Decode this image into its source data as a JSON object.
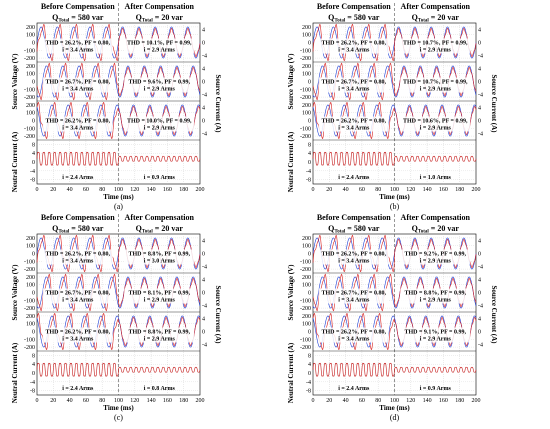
{
  "colors": {
    "voltage": "#1f3fd6",
    "current": "#d81e1e",
    "neutral": "#c51c1c",
    "grid": "#bbbbbb",
    "divider": "#555555"
  },
  "shared": {
    "header_before": "Before Compensation",
    "header_after": "After Compensation",
    "q_before_label": "Q",
    "q_before_sub": "Total",
    "q_before_value": " = 580 var",
    "q_after_label": "Q",
    "q_after_sub": "Total",
    "q_after_value": " = 20 var",
    "ylabel_left_top": "Source Voltage (V)",
    "ylabel_left_bottom": "Neutral Current (A)",
    "ylabel_right": "Source Current (A)",
    "xlabel": "Time (ms)"
  },
  "chart_data": [
    {
      "type": "line",
      "caption": "(a)",
      "x_ticks": [
        0,
        20,
        40,
        60,
        80,
        100,
        120,
        140,
        160,
        180,
        200
      ],
      "xlim": [
        0,
        200
      ],
      "voltage_ticks": [
        200,
        100,
        0,
        -100,
        -200
      ],
      "current_ticks": [
        4,
        0,
        -4
      ],
      "neutral_ticks": [
        8,
        4,
        0,
        -4,
        -8
      ],
      "before_rows": [
        {
          "thd": "26.2%",
          "pf": "0.80",
          "i": "3.4 Arms"
        },
        {
          "thd": "26.7%",
          "pf": "0.80",
          "i": "3.4 Arms"
        },
        {
          "thd": "26.2%",
          "pf": "0.80",
          "i": "3.4 Arms"
        }
      ],
      "after_rows": [
        {
          "thd": "10.1%",
          "pf": "0.99",
          "i": "2.9 Arms"
        },
        {
          "thd": "9.6%",
          "pf": "0.99",
          "i": "2.9 Arms"
        },
        {
          "thd": "10.0%",
          "pf": "0.99",
          "i": "2.9 Arms"
        }
      ],
      "neutral_before": "2.4 A",
      "neutral_after": "0.9 A"
    },
    {
      "type": "line",
      "caption": "(b)",
      "x_ticks": [
        0,
        20,
        40,
        60,
        80,
        100,
        120,
        140,
        160,
        180,
        200
      ],
      "xlim": [
        0,
        200
      ],
      "voltage_ticks": [
        200,
        100,
        0,
        -100,
        -200
      ],
      "current_ticks": [
        4,
        0,
        -4
      ],
      "neutral_ticks": [
        8,
        4,
        0,
        -4,
        -8
      ],
      "before_rows": [
        {
          "thd": "26.2%",
          "pf": "0.80",
          "i": "3.4 Arms"
        },
        {
          "thd": "26.7%",
          "pf": "0.80",
          "i": "3.4 Arms"
        },
        {
          "thd": "26.2%",
          "pf": "0.80",
          "i": "3.4 Arms"
        }
      ],
      "after_rows": [
        {
          "thd": "10.7%",
          "pf": "0.99",
          "i": "2.9 Arms"
        },
        {
          "thd": "10.7%",
          "pf": "0.99",
          "i": "2.9 Arms"
        },
        {
          "thd": "10.6%",
          "pf": "0.99",
          "i": "2.9 Arms"
        }
      ],
      "neutral_before": "2.4 A",
      "neutral_after": "1.0 A"
    },
    {
      "type": "line",
      "caption": "(c)",
      "x_ticks": [
        0,
        20,
        40,
        60,
        80,
        100,
        120,
        140,
        160,
        180,
        200
      ],
      "xlim": [
        0,
        200
      ],
      "voltage_ticks": [
        200,
        100,
        0,
        -100,
        -200
      ],
      "current_ticks": [
        4,
        0,
        -4
      ],
      "neutral_ticks": [
        8,
        4,
        0,
        -4,
        -8
      ],
      "before_rows": [
        {
          "thd": "26.2%",
          "pf": "0.80",
          "i": "3.4 Arms"
        },
        {
          "thd": "26.7%",
          "pf": "0.80",
          "i": "3.4 Arms"
        },
        {
          "thd": "26.2%",
          "pf": "0.80",
          "i": "3.4 Arms"
        }
      ],
      "after_rows": [
        {
          "thd": "8.8%",
          "pf": "0.99",
          "i": "3.0 Arms"
        },
        {
          "thd": "8.1%",
          "pf": "0.99",
          "i": "2.9 Arms"
        },
        {
          "thd": "8.8%",
          "pf": "0.99",
          "i": "2.9 Arms"
        }
      ],
      "neutral_before": "2.4 A",
      "neutral_after": "0.8 A"
    },
    {
      "type": "line",
      "caption": "(d)",
      "x_ticks": [
        0,
        20,
        40,
        60,
        80,
        100,
        120,
        140,
        160,
        180,
        200
      ],
      "xlim": [
        0,
        200
      ],
      "voltage_ticks": [
        200,
        100,
        0,
        -100,
        -200
      ],
      "current_ticks": [
        4,
        0,
        -4
      ],
      "neutral_ticks": [
        8,
        4,
        0,
        -4,
        -8
      ],
      "before_rows": [
        {
          "thd": "26.2%",
          "pf": "0.80",
          "i": "3.4 Arms"
        },
        {
          "thd": "26.7%",
          "pf": "0.80",
          "i": "3.4 Arms"
        },
        {
          "thd": "26.2%",
          "pf": "0.80",
          "i": "3.4 Arms"
        }
      ],
      "after_rows": [
        {
          "thd": "9.2%",
          "pf": "0.99",
          "i": "2.9 Arms"
        },
        {
          "thd": "8.8%",
          "pf": "0.99",
          "i": "2.9 Arms"
        },
        {
          "thd": "9.1%",
          "pf": "0.99",
          "i": "2.9 Arms"
        }
      ],
      "neutral_before": "2.4 A",
      "neutral_after": "0.9 A"
    }
  ]
}
